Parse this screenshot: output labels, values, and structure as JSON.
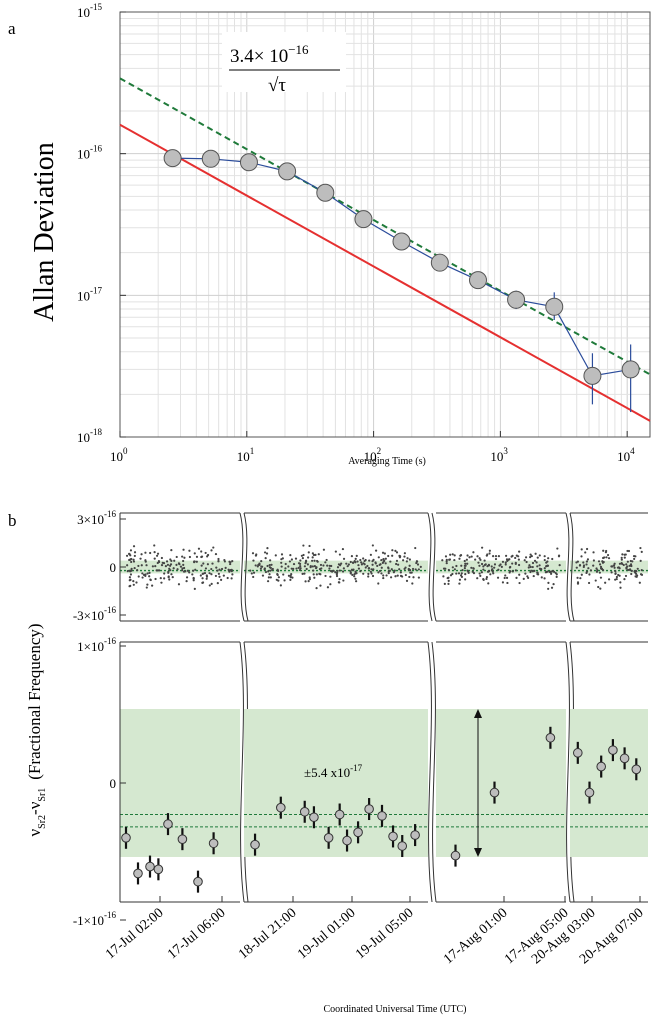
{
  "chart_data": [
    {
      "panel": "a",
      "type": "scatter",
      "xlabel": "Averaging Time (s)",
      "ylabel": "Allan Deviation",
      "xscale": "log",
      "yscale": "log",
      "xlim": [
        1,
        30000
      ],
      "ylim": [
        1e-18,
        1e-15
      ],
      "grid": true,
      "x_ticks": [
        {
          "base": "10",
          "exp": "0"
        },
        {
          "base": "10",
          "exp": "1"
        },
        {
          "base": "10",
          "exp": "2"
        },
        {
          "base": "10",
          "exp": "3"
        },
        {
          "base": "10",
          "exp": "4"
        }
      ],
      "y_ticks": [
        {
          "base": "10",
          "exp": "-15"
        },
        {
          "base": "10",
          "exp": "-16"
        },
        {
          "base": "10",
          "exp": "-17"
        },
        {
          "base": "10",
          "exp": "-18"
        }
      ],
      "annotation": {
        "numerator": "3.4× 10",
        "numerator_exp": "−16",
        "denominator": "√τ"
      },
      "series": [
        {
          "x": [
            2.6,
            5.2,
            10.4,
            20.8,
            41.6,
            83.2,
            166,
            333,
            666,
            1330,
            2660,
            5320,
            10650
          ],
          "y": [
            9.3e-17,
            9.2e-17,
            8.7e-17,
            7.5e-17,
            5.3e-17,
            3.45e-17,
            2.4e-17,
            1.7e-17,
            1.28e-17,
            9.3e-18,
            8.3e-18,
            2.7e-18,
            3e-18
          ],
          "yerr_low": [
            9.3e-17,
            9.2e-17,
            8.7e-17,
            7.5e-17,
            5.3e-17,
            3.45e-17,
            2.4e-17,
            1.7e-17,
            1.28e-17,
            8e-18,
            6.7e-18,
            1.7e-18,
            1.5e-18
          ],
          "yerr_high": [
            9.3e-17,
            9.2e-17,
            8.7e-17,
            7.5e-17,
            5.3e-17,
            3.45e-17,
            2.4e-17,
            1.7e-17,
            1.28e-17,
            1.08e-17,
            1.05e-17,
            3.9e-18,
            4.5e-18
          ],
          "color": "#2b4c9b"
        }
      ],
      "lines": [
        {
          "slope": -0.5,
          "value_at_1": 3.4e-16,
          "style": "dashed",
          "color": "#1f7a3a"
        },
        {
          "slope": -0.5,
          "value_at_1": 1.6e-16,
          "style": "solid",
          "color": "#e53030"
        }
      ]
    },
    {
      "panel": "b",
      "type": "scatter",
      "ylabel_main": "ν",
      "ylabel_sub1": "Sr2",
      "ylabel_mid": "-ν",
      "ylabel_sub2": "Sr1",
      "ylabel_paren": "(Fractional Frequency)",
      "xlabel": "Coordinated Universal Time (UTC)",
      "top_y_ticks": [
        {
          "mant": "3×10",
          "exp": "-16"
        },
        {
          "mant": "0",
          "exp": ""
        },
        {
          "mant": "-3×10",
          "exp": "-16"
        }
      ],
      "bottom_y_ticks": [
        {
          "mant": "1×10",
          "exp": "-16"
        },
        {
          "mant": "0",
          "exp": ""
        },
        {
          "mant": "-1×10",
          "exp": "-16"
        }
      ],
      "band_label": "±5.4 x10",
      "band_label_exp": "-17",
      "band_halfwidth": 5.4e-17,
      "mean_lines": [
        -2.3e-17,
        -3.2e-17
      ],
      "x_tick_labels": [
        "17-Jul 02:00",
        "17-Jul 06:00",
        "18-Jul 21:00",
        "19-Jul 01:00",
        "19-Jul 05:00",
        "17-Aug 01:00",
        "17-Aug 05:00",
        "20-Aug 03:00",
        "20-Aug 07:00"
      ],
      "segments": [
        {
          "points": [
            [
              0.05,
              -4e-17
            ],
            [
              0.15,
              -6.6e-17
            ],
            [
              0.25,
              -6.1e-17
            ],
            [
              0.32,
              -6.3e-17
            ],
            [
              0.4,
              -3e-17
            ],
            [
              0.52,
              -4.1e-17
            ],
            [
              0.65,
              -7.2e-17
            ],
            [
              0.78,
              -4.4e-17
            ]
          ]
        },
        {
          "points": [
            [
              0.06,
              -4.5e-17
            ],
            [
              0.2,
              -1.8e-17
            ],
            [
              0.33,
              -2.1e-17
            ],
            [
              0.38,
              -2.5e-17
            ],
            [
              0.46,
              -4e-17
            ],
            [
              0.52,
              -2.3e-17
            ],
            [
              0.56,
              -4.2e-17
            ],
            [
              0.62,
              -3.6e-17
            ],
            [
              0.68,
              -1.9e-17
            ],
            [
              0.75,
              -2.4e-17
            ],
            [
              0.81,
              -3.9e-17
            ],
            [
              0.86,
              -4.6e-17
            ],
            [
              0.93,
              -3.8e-17
            ]
          ]
        },
        {
          "points": [
            [
              0.15,
              -5.3e-17
            ],
            [
              0.45,
              -7e-18
            ],
            [
              0.88,
              3.3e-17
            ]
          ]
        },
        {
          "points": [
            [
              0.1,
              2.2e-17
            ],
            [
              0.25,
              -7e-18
            ],
            [
              0.4,
              1.2e-17
            ],
            [
              0.55,
              2.4e-17
            ],
            [
              0.7,
              1.8e-17
            ],
            [
              0.85,
              1e-17
            ]
          ]
        }
      ]
    }
  ],
  "panel_labels": {
    "a": "a",
    "b": "b"
  }
}
